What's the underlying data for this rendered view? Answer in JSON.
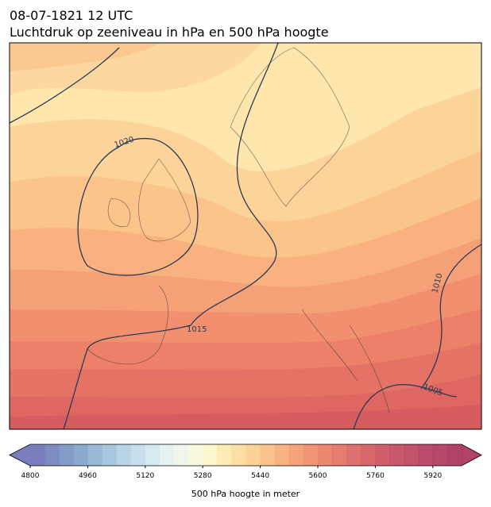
{
  "header": {
    "date": "08-07-1821 12 UTC",
    "title": "Luchtdruk op zeeniveau in hPa en 500 hPa hoogte"
  },
  "isobar_labels": [
    1020,
    1015,
    1010,
    1005
  ],
  "colorbar": {
    "label": "500 hPa hoogte in meter",
    "lim": [
      4800,
      6000
    ],
    "ticks": [
      4800,
      4960,
      5120,
      5280,
      5440,
      5600,
      5760,
      5920
    ],
    "colors": [
      "#6b70b5",
      "#7080bb",
      "#7890c2",
      "#80a0c9",
      "#8fb0d2",
      "#9fc0da",
      "#b0cfe2",
      "#c2dce9",
      "#d3e7f0",
      "#e2eff2",
      "#eef5ea",
      "#f7f8d8",
      "#fcf6c4",
      "#fde9ad",
      "#fddb9c",
      "#fccd8c",
      "#fabc7f",
      "#f7aa75",
      "#f4996d",
      "#ef8967",
      "#ea7b63",
      "#e36f60",
      "#dc625e",
      "#d4575c",
      "#cc4e5c",
      "#c4465c",
      "#bc3f5c",
      "#b5395c",
      "#ae345b",
      "#a82f5a"
    ]
  }
}
